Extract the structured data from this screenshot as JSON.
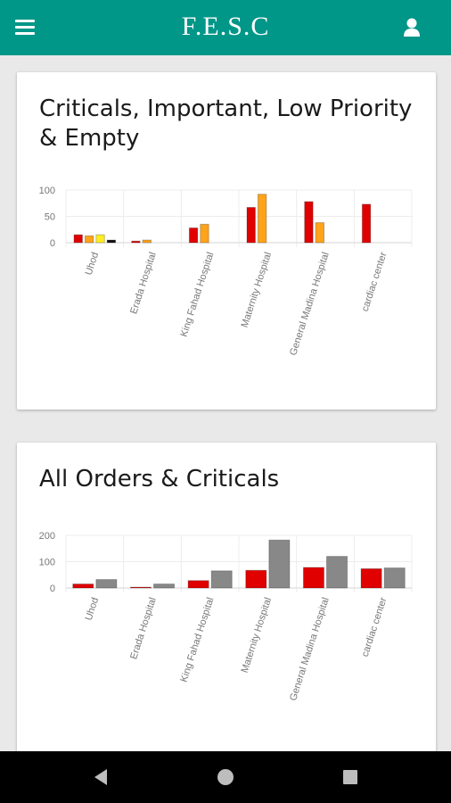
{
  "app": {
    "title": "F.E.S.C"
  },
  "theme": {
    "primary": "#009688",
    "critical": "#e00000",
    "important": "#ffa31a",
    "low": "#ffee22",
    "empty": "#111111",
    "all_orders": "#888888"
  },
  "cards": [
    {
      "title": "Criticals, Important, Low Priority & Empty",
      "chart_data": {
        "type": "bar",
        "categories": [
          "Uhod",
          "Erada Hospital",
          "King Fahad Hospital",
          "Maternity Hospital",
          "General Madina Hospital",
          "cardiac center"
        ],
        "series": [
          {
            "values": [
              15,
              3,
              28,
              67,
              78,
              73
            ],
            "color": "#e00000"
          },
          {
            "values": [
              13,
              5,
              35,
              92,
              38,
              0
            ],
            "color": "#ffa31a"
          },
          {
            "values": [
              15,
              0,
              0,
              0,
              0,
              0
            ],
            "color": "#ffee22"
          },
          {
            "values": [
              5,
              0,
              0,
              0,
              0,
              0
            ],
            "color": "#111111"
          }
        ],
        "ylim": [
          0,
          100
        ],
        "yticks": [
          0,
          50,
          100
        ],
        "grid": true
      }
    },
    {
      "title": "All Orders & Criticals",
      "chart_data": {
        "type": "bar",
        "categories": [
          "Uhod",
          "Erada Hospital",
          "King Fahad Hospital",
          "Maternity Hospital",
          "General Madina Hospital",
          "cardiac center"
        ],
        "series": [
          {
            "values": [
              15,
              3,
              28,
              67,
              78,
              73
            ],
            "color": "#e00000"
          },
          {
            "values": [
              32,
              15,
              65,
              182,
              120,
              76
            ],
            "color": "#888888"
          }
        ],
        "ylim": [
          0,
          200
        ],
        "yticks": [
          0,
          100,
          200
        ],
        "grid": true
      }
    }
  ]
}
